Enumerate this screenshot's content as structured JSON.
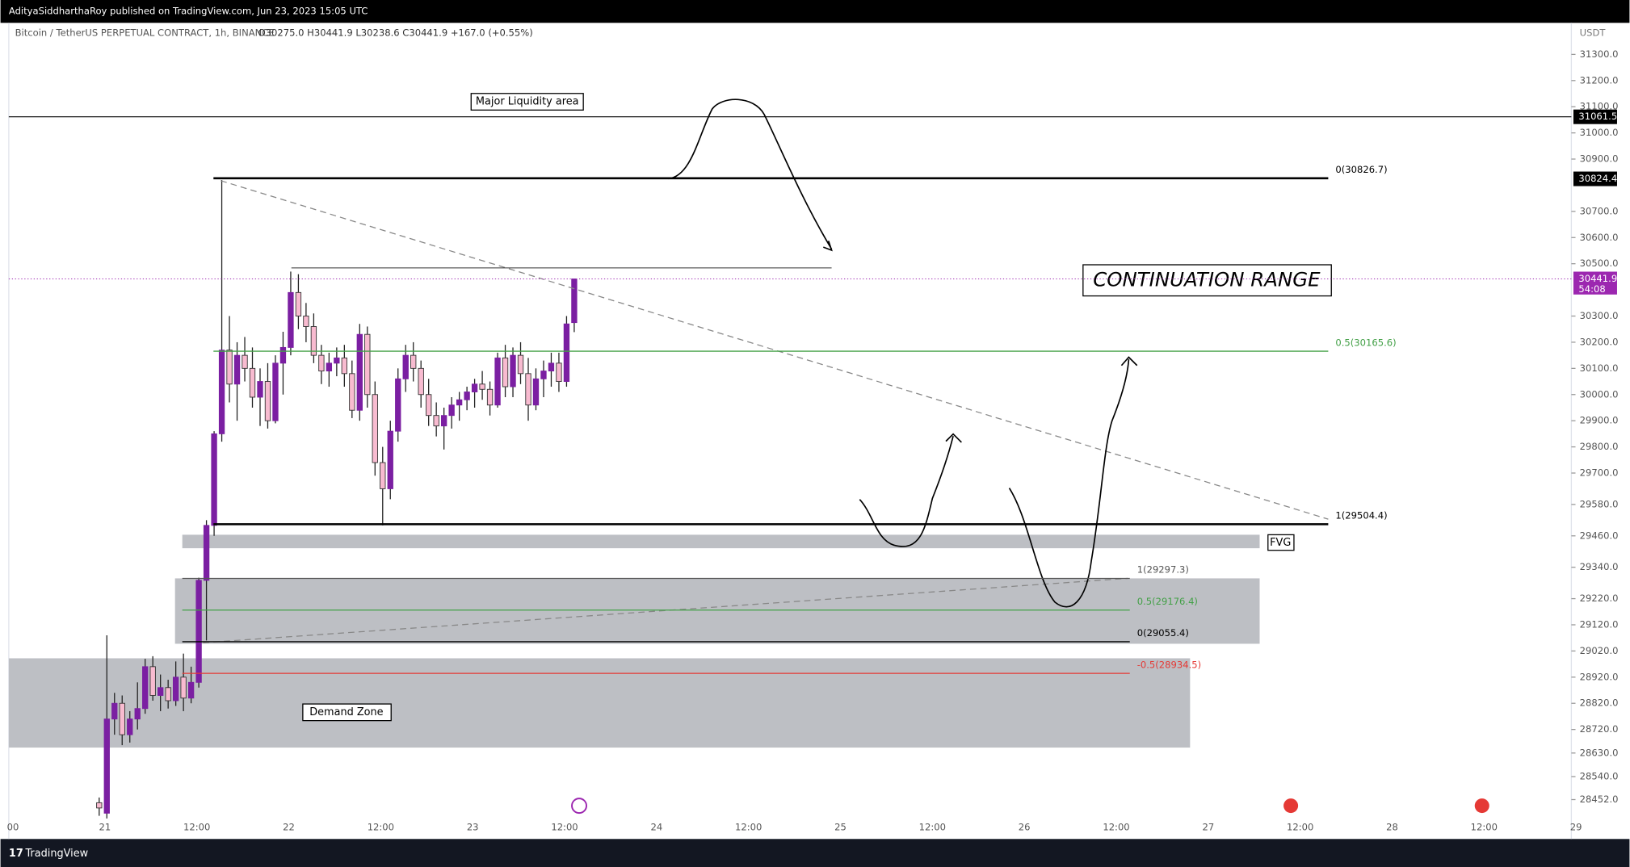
{
  "header": {
    "published": "AdityaSiddharthaRoy published on TradingView.com, Jun 23, 2023 15:05 UTC",
    "footer": "TradingView"
  },
  "chart_data": {
    "type": "candlestick",
    "symbol": "Bitcoin / TetherUS PERPETUAL CONTRACT, 1h, BINANCE",
    "ohlc": "O30275.0 H30441.9 L30238.6 C30441.9 +167.0 (+0.55%)",
    "currency": "USDT",
    "up_color": "#7b1fa2",
    "down_color": "#f8bbd0",
    "series": {
      "open": [
        28440,
        28400,
        28760,
        28820,
        28700,
        28760,
        28800,
        28960,
        28850,
        28880,
        28830,
        28920,
        28840,
        28900,
        29290,
        29500,
        29850,
        30170,
        30040,
        30150,
        30100,
        29990,
        30050,
        29900,
        30120,
        30180,
        30390,
        30300,
        30260,
        30150,
        30090,
        30120,
        30140,
        30080,
        29940,
        30230,
        30000,
        29740,
        29640,
        29860,
        30060,
        30150,
        30100,
        30000,
        29920,
        29880,
        29920,
        29960,
        29980,
        30010,
        30040,
        30020,
        29960,
        30140,
        30030,
        30150,
        30080,
        29960,
        30060,
        30090,
        30120,
        30050,
        30275
      ],
      "high": [
        28460,
        29080,
        28860,
        28850,
        28790,
        28900,
        28990,
        29000,
        28930,
        28910,
        28980,
        29010,
        28960,
        29300,
        29520,
        29860,
        30820,
        30300,
        30200,
        30220,
        30180,
        30100,
        30120,
        30150,
        30240,
        30470,
        30460,
        30350,
        30310,
        30190,
        30160,
        30180,
        30190,
        30130,
        30270,
        30260,
        30050,
        29800,
        29900,
        30100,
        30190,
        30200,
        30130,
        30060,
        29970,
        29950,
        29990,
        30010,
        30030,
        30060,
        30090,
        30050,
        30160,
        30190,
        30180,
        30200,
        30140,
        30100,
        30130,
        30160,
        30160,
        30300,
        30441.9
      ],
      "low": [
        28390,
        28380,
        28700,
        28660,
        28670,
        28720,
        28780,
        28830,
        28790,
        28800,
        28810,
        28790,
        28820,
        28880,
        29060,
        29460,
        29820,
        29970,
        29900,
        30050,
        29950,
        29880,
        29870,
        29890,
        30000,
        30150,
        30250,
        30200,
        30120,
        30040,
        30030,
        30070,
        30030,
        29910,
        29900,
        29950,
        29690,
        29500,
        29600,
        29820,
        30010,
        30050,
        29950,
        29880,
        29840,
        29790,
        29870,
        29900,
        29940,
        29950,
        29980,
        29920,
        29950,
        29990,
        29990,
        30040,
        29900,
        29940,
        29990,
        30030,
        30010,
        30030,
        30238.6
      ],
      "close": [
        28420,
        28760,
        28820,
        28700,
        28760,
        28800,
        28960,
        28850,
        28880,
        28830,
        28920,
        28840,
        28900,
        29290,
        29500,
        29850,
        30170,
        30040,
        30150,
        30100,
        29990,
        30050,
        29900,
        30120,
        30180,
        30390,
        30300,
        30260,
        30150,
        30090,
        30120,
        30140,
        30080,
        29940,
        30230,
        30000,
        29740,
        29640,
        29860,
        30060,
        30150,
        30100,
        30000,
        29920,
        29880,
        29920,
        29960,
        29980,
        30010,
        30040,
        30020,
        29960,
        30140,
        30030,
        30150,
        30080,
        29960,
        30060,
        30090,
        30120,
        30050,
        30270,
        30441.9
      ]
    },
    "ylim": [
      28345.2,
      31420.6
    ],
    "yticks": [
      {
        "value": 31300,
        "label": "31300.0"
      },
      {
        "value": 31200,
        "label": "31200.0"
      },
      {
        "value": 31100,
        "label": "31100.0"
      },
      {
        "value": 31000,
        "label": "31000.0"
      },
      {
        "value": 30900,
        "label": "30900.0"
      },
      {
        "value": 30700,
        "label": "30700.0"
      },
      {
        "value": 30600,
        "label": "30600.0"
      },
      {
        "value": 30500,
        "label": "30500.0"
      },
      {
        "value": 30300,
        "label": "30300.0"
      },
      {
        "value": 30200,
        "label": "30200.0"
      },
      {
        "value": 30100,
        "label": "30100.0"
      },
      {
        "value": 30000,
        "label": "30000.0"
      },
      {
        "value": 29900,
        "label": "29900.0"
      },
      {
        "value": 29800,
        "label": "29800.0"
      },
      {
        "value": 29700,
        "label": "29700.0"
      },
      {
        "value": 29580,
        "label": "29580.0"
      },
      {
        "value": 29460,
        "label": "29460.0"
      },
      {
        "value": 29340,
        "label": "29340.0"
      },
      {
        "value": 29220,
        "label": "29220.0"
      },
      {
        "value": 29120,
        "label": "29120.0"
      },
      {
        "value": 29020,
        "label": "29020.0"
      },
      {
        "value": 28920,
        "label": "28920.0"
      },
      {
        "value": 28820,
        "label": "28820.0"
      },
      {
        "value": 28720,
        "label": "28720.0"
      },
      {
        "value": 28630,
        "label": "28630.0"
      },
      {
        "value": 28540,
        "label": "28540.0"
      },
      {
        "value": 28452,
        "label": "28452.0"
      }
    ],
    "xticks": [
      "00",
      "21",
      "12:00",
      "22",
      "12:00",
      "23",
      "12:00",
      "24",
      "12:00",
      "25",
      "12:00",
      "26",
      "12:00",
      "27",
      "12:00",
      "28",
      "12:00",
      "29"
    ],
    "price_flags": [
      {
        "value": 31061.5,
        "label": "31061.5",
        "color": "#000000"
      },
      {
        "value": 30824.4,
        "label": "30824.4",
        "color": "#000000"
      },
      {
        "value": 30441.9,
        "label": "30441.9",
        "countdown": "54:08",
        "color": "#9c27b0"
      }
    ],
    "fib_upper": [
      {
        "label": "0(30826.7)",
        "value": 30826.7,
        "color": "#000000"
      },
      {
        "label": "0.5(30165.6)",
        "value": 30165.6,
        "color": "#43a047"
      },
      {
        "label": "1(29504.4)",
        "value": 29504.4,
        "color": "#000000"
      }
    ],
    "fib_lower": [
      {
        "label": "1(29297.3)",
        "value": 29297.3,
        "color": "#555555"
      },
      {
        "label": "0.5(29176.4)",
        "value": 29176.4,
        "color": "#43a047"
      },
      {
        "label": "0(29055.4)",
        "value": 29055.4,
        "color": "#000000"
      },
      {
        "label": "-0.5(28934.5)",
        "value": 28934.5,
        "color": "#e53935"
      }
    ],
    "annotations": {
      "liquidity": "Major Liquidity area",
      "range": "CONTINUATION RANGE",
      "fvg": "FVG",
      "demand": "Demand Zone"
    }
  }
}
